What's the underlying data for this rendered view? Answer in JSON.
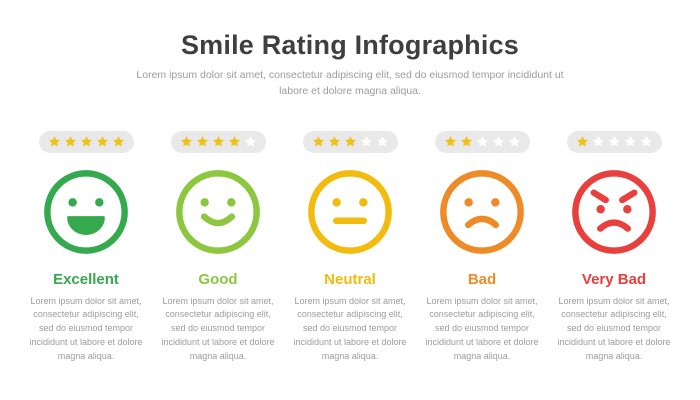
{
  "header": {
    "title": "Smile Rating Infographics",
    "subtitle": "Lorem ipsum dolor sit amet, consectetur adipiscing elit, sed do eiusmod tempor incididunt ut labore et dolore magna aliqua."
  },
  "colors": {
    "title_text": "#3f3f3f",
    "muted_text": "#9c9c9c",
    "pill_bg": "#e9e9e9",
    "star_filled": "#f0c01b",
    "star_empty": "#ffffff"
  },
  "chart_data": {
    "type": "table",
    "title": "Smile Rating Infographics",
    "categories": [
      "Excellent",
      "Good",
      "Neutral",
      "Bad",
      "Very Bad"
    ],
    "series": [
      {
        "name": "stars_filled",
        "values": [
          5,
          4,
          3,
          2,
          1
        ]
      },
      {
        "name": "stars_total",
        "values": [
          5,
          5,
          5,
          5,
          5
        ]
      }
    ],
    "legend_position": "none"
  },
  "ratings": [
    {
      "label": "Excellent",
      "stars": 5,
      "stars_total": 5,
      "color": "#35a94e",
      "face": "big-smile",
      "description": "Lorem ipsum dolor sit amet, consectetur adipiscing elit, sed do eiusmod tempor incididunt ut labore et dolore magna aliqua."
    },
    {
      "label": "Good",
      "stars": 4,
      "stars_total": 5,
      "color": "#8dc63f",
      "face": "smile",
      "description": "Lorem ipsum dolor sit amet, consectetur adipiscing elit, sed do eiusmod tempor incididunt ut labore et dolore magna aliqua."
    },
    {
      "label": "Neutral",
      "stars": 3,
      "stars_total": 5,
      "color": "#f2bb0d",
      "face": "neutral",
      "description": "Lorem ipsum dolor sit amet, consectetur adipiscing elit, sed do eiusmod tempor incididunt ut labore et dolore magna aliqua."
    },
    {
      "label": "Bad",
      "stars": 2,
      "stars_total": 5,
      "color": "#ef8b27",
      "face": "frown",
      "description": "Lorem ipsum dolor sit amet, consectetur adipiscing elit, sed do eiusmod tempor incididunt ut labore et dolore magna aliqua."
    },
    {
      "label": "Very Bad",
      "stars": 1,
      "stars_total": 5,
      "color": "#e8403d",
      "face": "angry",
      "description": "Lorem ipsum dolor sit amet, consectetur adipiscing elit, sed do eiusmod tempor incididunt ut labore et dolore magna aliqua."
    }
  ]
}
